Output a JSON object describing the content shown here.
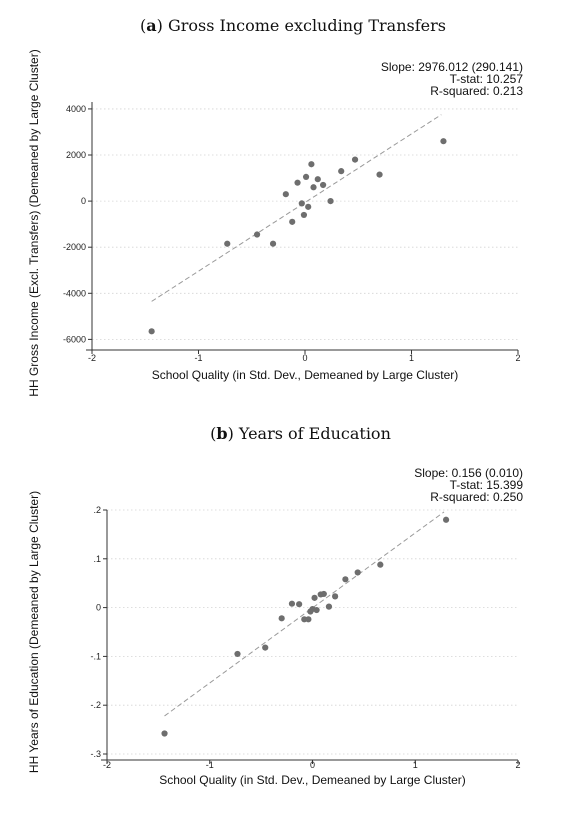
{
  "chart_data": [
    {
      "type": "scatter",
      "panel_label": "a",
      "title": "Gross Income excluding Transfers",
      "xlabel": "School Quality (in Std. Dev., Demeaned by Large Cluster)",
      "ylabel": "HH Gross Income (Excl. Transfers) (Demeaned by Large Cluster)",
      "xlim": [
        -2,
        2
      ],
      "ylim": [
        -6200,
        4300
      ],
      "xticks": [
        -2,
        -1,
        0,
        1,
        2
      ],
      "xtick_labels": [
        "-2",
        "-1",
        "0",
        "1",
        "2"
      ],
      "yticks": [
        -6000,
        -4000,
        -2000,
        0,
        2000,
        4000
      ],
      "ytick_labels": [
        "-6000",
        "-4000",
        "-2000",
        "0",
        "2000",
        "4000"
      ],
      "grid": "horizontal-dotted",
      "fit_line": {
        "x": [
          -1.44,
          1.28
        ],
        "y": [
          -4350,
          3750
        ],
        "style": "dashed"
      },
      "stats": [
        "Slope: 2976.012 (290.141)",
        "T-stat: 10.257",
        "R-squared: 0.213"
      ],
      "points": [
        {
          "x": -1.44,
          "y": -5650
        },
        {
          "x": -0.73,
          "y": -1850
        },
        {
          "x": -0.45,
          "y": -1450
        },
        {
          "x": -0.3,
          "y": -1850
        },
        {
          "x": -0.18,
          "y": 300
        },
        {
          "x": -0.12,
          "y": -900
        },
        {
          "x": -0.07,
          "y": 800
        },
        {
          "x": -0.03,
          "y": -100
        },
        {
          "x": -0.01,
          "y": -600
        },
        {
          "x": 0.01,
          "y": 1050
        },
        {
          "x": 0.03,
          "y": -250
        },
        {
          "x": 0.06,
          "y": 1600
        },
        {
          "x": 0.08,
          "y": 600
        },
        {
          "x": 0.12,
          "y": 950
        },
        {
          "x": 0.17,
          "y": 700
        },
        {
          "x": 0.24,
          "y": 0
        },
        {
          "x": 0.34,
          "y": 1300
        },
        {
          "x": 0.47,
          "y": 1800
        },
        {
          "x": 0.7,
          "y": 1150
        },
        {
          "x": 1.3,
          "y": 2600
        }
      ]
    },
    {
      "type": "scatter",
      "panel_label": "b",
      "title": "Years of Education",
      "xlabel": "School Quality (in Std. Dev., Demeaned by Large Cluster)",
      "ylabel": "HH Years of Education (Demeaned by Large Cluster)",
      "xlim": [
        -2,
        2
      ],
      "ylim": [
        -0.3,
        0.2
      ],
      "xticks": [
        -2,
        -1,
        0,
        1,
        2
      ],
      "xtick_labels": [
        "-2",
        "-1",
        "0",
        "1",
        "2"
      ],
      "yticks": [
        -0.3,
        -0.2,
        -0.1,
        0,
        0.1,
        0.2
      ],
      "ytick_labels": [
        "-.3",
        "-.2",
        "-.1",
        "0",
        ".1",
        ".2"
      ],
      "grid": "horizontal-dotted",
      "fit_line": {
        "x": [
          -1.44,
          1.28
        ],
        "y": [
          -0.222,
          0.196
        ],
        "style": "dashed"
      },
      "stats": [
        "Slope: 0.156 (0.010)",
        "T-stat: 15.399",
        "R-squared: 0.250"
      ],
      "points": [
        {
          "x": -1.44,
          "y": -0.258
        },
        {
          "x": -0.73,
          "y": -0.095
        },
        {
          "x": -0.46,
          "y": -0.082
        },
        {
          "x": -0.3,
          "y": -0.022
        },
        {
          "x": -0.2,
          "y": 0.008
        },
        {
          "x": -0.13,
          "y": 0.007
        },
        {
          "x": -0.08,
          "y": -0.024
        },
        {
          "x": -0.04,
          "y": -0.024
        },
        {
          "x": -0.02,
          "y": -0.008
        },
        {
          "x": 0.0,
          "y": -0.003
        },
        {
          "x": 0.02,
          "y": 0.02
        },
        {
          "x": 0.04,
          "y": -0.005
        },
        {
          "x": 0.08,
          "y": 0.027
        },
        {
          "x": 0.11,
          "y": 0.028
        },
        {
          "x": 0.16,
          "y": 0.002
        },
        {
          "x": 0.22,
          "y": 0.023
        },
        {
          "x": 0.32,
          "y": 0.058
        },
        {
          "x": 0.44,
          "y": 0.072
        },
        {
          "x": 0.66,
          "y": 0.088
        },
        {
          "x": 1.3,
          "y": 0.18
        }
      ]
    }
  ]
}
